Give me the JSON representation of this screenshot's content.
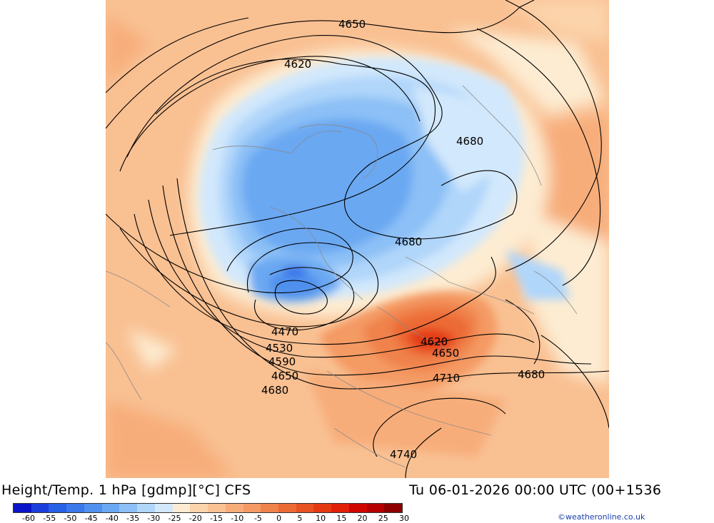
{
  "header": {
    "title": "Height/Temp. 1 hPa [gdmp][°C] CFS",
    "valid": "Tu 06-01-2026 00:00 UTC (00+1536"
  },
  "contour_labels": [
    "4650",
    "4620",
    "4680",
    "4680",
    "4470",
    "4530",
    "4590",
    "4650",
    "4680",
    "4620",
    "4650",
    "4710",
    "4680",
    "4740"
  ],
  "legend": {
    "colors": [
      "#0a14c8",
      "#1a3edc",
      "#2860e6",
      "#3a78ec",
      "#5090ee",
      "#6aa8f2",
      "#8cc0f6",
      "#b0d6fa",
      "#d2e8fc",
      "#fdecd2",
      "#fcd4ac",
      "#fac292",
      "#f7ad7a",
      "#f49a64",
      "#f0824c",
      "#ec6a36",
      "#e85224",
      "#e43a14",
      "#e02008",
      "#d00600",
      "#b40000",
      "#8c0000"
    ],
    "ticks": [
      "-60",
      "-55",
      "-50",
      "-45",
      "-40",
      "-35",
      "-30",
      "-25",
      "-20",
      "-15",
      "-10",
      "-5",
      "0",
      "5",
      "10",
      "15",
      "20",
      "25",
      "30"
    ]
  },
  "credit": "©weatheronline.co.uk"
}
